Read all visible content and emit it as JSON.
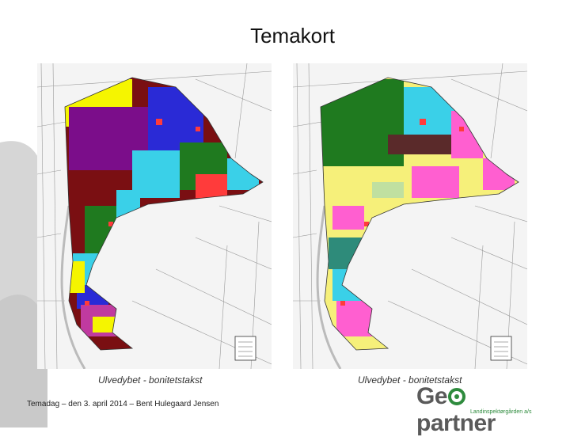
{
  "slide": {
    "title": "Temakort",
    "footer": "Temadag – den 3. april 2014 – Bent Hulegaard Jensen"
  },
  "maps": [
    {
      "caption": "Ulvedybet - bonitetstakst",
      "palette": [
        "#7b0d8a",
        "#7a0f12",
        "#1f7a1f",
        "#3ad0e8",
        "#ff3b3b",
        "#f5f500",
        "#c03aa0",
        "#2a2ad6"
      ]
    },
    {
      "caption": "Ulvedybet - bonitetstakst",
      "palette": [
        "#1f7a1f",
        "#f6f07a",
        "#ff5fd0",
        "#3ad0e8",
        "#5a2a2a",
        "#2e8b7a",
        "#ff3b3b",
        "#c0e0a0"
      ]
    }
  ],
  "logo": {
    "word_left": "Ge",
    "word_right": "partner",
    "tagline": "Landinspektørgården a/s",
    "brand_color": "#2e8b3d"
  }
}
